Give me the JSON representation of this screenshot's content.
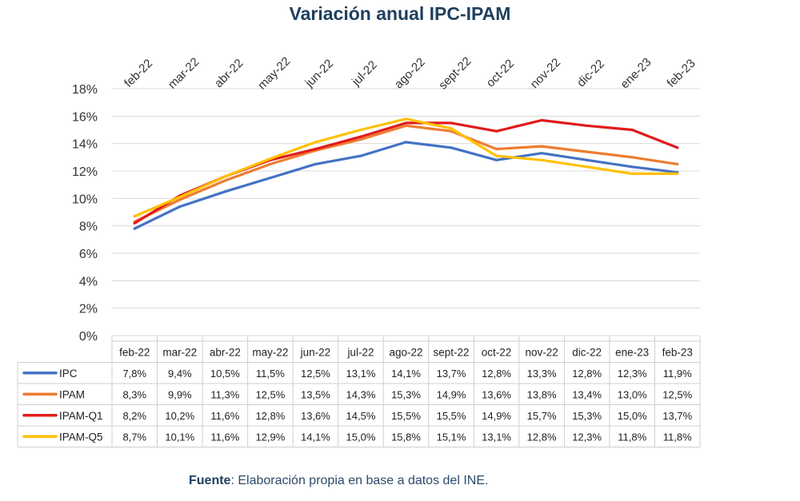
{
  "chart_data": {
    "type": "line",
    "title": "Variación anual IPC-IPAM",
    "categories": [
      "feb-22",
      "mar-22",
      "abr-22",
      "may-22",
      "jun-22",
      "jul-22",
      "ago-22",
      "sept-22",
      "oct-22",
      "nov-22",
      "dic-22",
      "ene-23",
      "feb-23"
    ],
    "y_ticks": [
      "0%",
      "2%",
      "4%",
      "6%",
      "8%",
      "10%",
      "12%",
      "14%",
      "16%",
      "18%"
    ],
    "ylim": [
      0,
      18
    ],
    "grid": true,
    "legend_placement": "data-table",
    "series": [
      {
        "name": "IPC",
        "color": "#4472c4",
        "values": [
          7.8,
          9.4,
          10.5,
          11.5,
          12.5,
          13.1,
          14.1,
          13.7,
          12.8,
          13.3,
          12.8,
          12.3,
          11.9
        ],
        "labels": [
          "7,8%",
          "9,4%",
          "10,5%",
          "11,5%",
          "12,5%",
          "13,1%",
          "14,1%",
          "13,7%",
          "12,8%",
          "13,3%",
          "12,8%",
          "12,3%",
          "11,9%"
        ]
      },
      {
        "name": "IPAM",
        "color": "#ed7d31",
        "values": [
          8.3,
          9.9,
          11.3,
          12.5,
          13.5,
          14.3,
          15.3,
          14.9,
          13.6,
          13.8,
          13.4,
          13.0,
          12.5
        ],
        "labels": [
          "8,3%",
          "9,9%",
          "11,3%",
          "12,5%",
          "13,5%",
          "14,3%",
          "15,3%",
          "14,9%",
          "13,6%",
          "13,8%",
          "13,4%",
          "13,0%",
          "12,5%"
        ]
      },
      {
        "name": "IPAM-Q1",
        "color": "#e01b1b",
        "values": [
          8.2,
          10.2,
          11.6,
          12.8,
          13.6,
          14.5,
          15.5,
          15.5,
          14.9,
          15.7,
          15.3,
          15.0,
          13.7
        ],
        "labels": [
          "8,2%",
          "10,2%",
          "11,6%",
          "12,8%",
          "13,6%",
          "14,5%",
          "15,5%",
          "15,5%",
          "14,9%",
          "15,7%",
          "15,3%",
          "15,0%",
          "13,7%"
        ]
      },
      {
        "name": "IPAM-Q5",
        "color": "#ffc000",
        "values": [
          8.7,
          10.1,
          11.6,
          12.9,
          14.1,
          15.0,
          15.8,
          15.1,
          13.1,
          12.8,
          12.3,
          11.8,
          11.8
        ],
        "labels": [
          "8,7%",
          "10,1%",
          "11,6%",
          "12,9%",
          "14,1%",
          "15,0%",
          "15,8%",
          "15,1%",
          "13,1%",
          "12,8%",
          "12,3%",
          "11,8%",
          "11,8%"
        ]
      }
    ]
  },
  "source": {
    "label": "Fuente",
    "text": ": Elaboración propia en base a datos del INE."
  }
}
